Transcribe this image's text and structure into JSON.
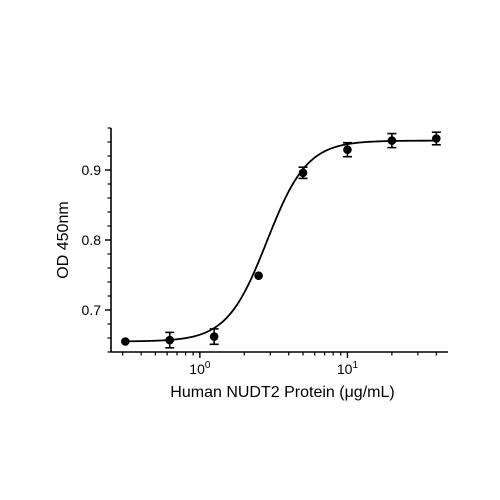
{
  "chart_data": {
    "type": "scatter",
    "title": "",
    "xlabel": "Human NUDT2 Protein (μg/mL)",
    "ylabel": "OD 450nm",
    "x_scale": "log10",
    "xlim": [
      0.25,
      48
    ],
    "ylim": [
      0.64,
      0.96
    ],
    "x_ticks": [
      {
        "value": 1,
        "base": "10",
        "exp": "0"
      },
      {
        "value": 10,
        "base": "10",
        "exp": "1"
      }
    ],
    "y_ticks": [
      {
        "value": 0.7,
        "label": "0.7"
      },
      {
        "value": 0.8,
        "label": "0.8"
      },
      {
        "value": 0.9,
        "label": "0.9"
      }
    ],
    "grid": false,
    "legend": "none",
    "series": [
      {
        "points": [
          {
            "x": 0.3125,
            "y": 0.655,
            "err": 0.0
          },
          {
            "x": 0.625,
            "y": 0.657,
            "err": 0.011
          },
          {
            "x": 1.25,
            "y": 0.662,
            "err": 0.011
          },
          {
            "x": 2.5,
            "y": 0.749,
            "err": 0.0
          },
          {
            "x": 5,
            "y": 0.896,
            "err": 0.008
          },
          {
            "x": 10,
            "y": 0.929,
            "err": 0.01
          },
          {
            "x": 20,
            "y": 0.942,
            "err": 0.01
          },
          {
            "x": 40,
            "y": 0.945,
            "err": 0.009
          }
        ],
        "fit": {
          "type": "4PL",
          "bottom": 0.655,
          "top": 0.942,
          "ec50": 2.85,
          "hill": 3.2
        }
      }
    ],
    "colors": {
      "marker": "#000000",
      "line": "#000000"
    }
  }
}
